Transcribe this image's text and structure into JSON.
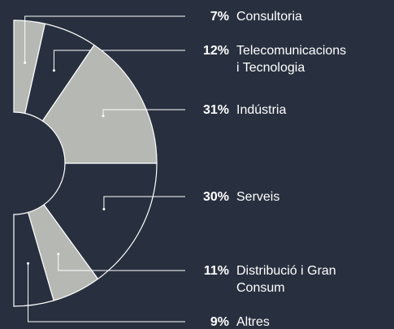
{
  "chart_data": {
    "type": "donut-half",
    "categories": [
      "Consultoria",
      "Telecomunicacions\ni Tecnologia",
      "Indústria",
      "Serveis",
      "Distribució i Gran\nConsum",
      "Altres"
    ],
    "values": [
      7,
      12,
      31,
      30,
      11,
      9
    ],
    "value_labels": [
      "7%",
      "12%",
      "31%",
      "30%",
      "11%",
      "9%"
    ],
    "colors": [
      "#b5b8b3",
      "#28303f",
      "#b5b8b3",
      "#28303f",
      "#b5b8b3",
      "#28303f"
    ]
  }
}
